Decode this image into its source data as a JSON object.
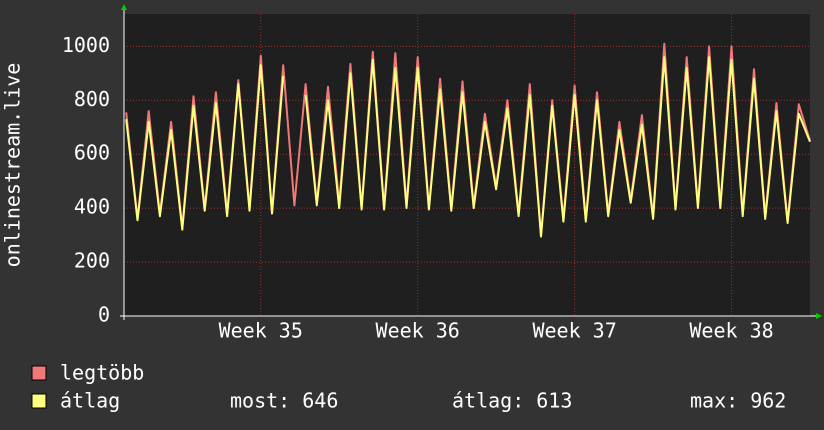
{
  "chart_data": {
    "type": "line",
    "y_label": "onlinestream.live",
    "x": [
      0.1,
      0.6,
      1.1,
      1.6,
      2.1,
      2.6,
      3.1,
      3.6,
      4.1,
      4.6,
      5.1,
      5.6,
      6.1,
      6.6,
      7.1,
      7.6,
      8.1,
      8.6,
      9.1,
      9.6,
      10.1,
      10.6,
      11.1,
      11.6,
      12.1,
      12.6,
      13.1,
      13.6,
      14.1,
      14.6,
      15.1,
      15.6,
      16.1,
      16.6,
      17.1,
      17.6,
      18.1,
      18.6,
      19.1,
      19.6,
      20.1,
      20.6,
      21.1,
      21.6,
      22.1,
      22.6,
      23.1,
      23.6,
      24.1,
      24.6,
      25.1,
      25.6,
      26.1,
      26.6,
      27.1,
      27.6,
      28.1,
      28.6,
      29.1,
      29.6,
      30.1,
      30.6
    ],
    "series": [
      {
        "name": "legtöbb",
        "color": "#f07878",
        "values": [
          755,
          360,
          760,
          380,
          720,
          330,
          815,
          400,
          830,
          380,
          875,
          400,
          965,
          380,
          930,
          410,
          860,
          420,
          850,
          420,
          935,
          400,
          980,
          400,
          975,
          410,
          960,
          400,
          880,
          400,
          870,
          410,
          750,
          480,
          800,
          380,
          860,
          300,
          800,
          360,
          855,
          360,
          830,
          380,
          720,
          430,
          745,
          370,
          1010,
          400,
          960,
          410,
          1000,
          410,
          1000,
          380,
          915,
          370,
          790,
          350,
          785,
          650
        ]
      },
      {
        "name": "átlag",
        "color": "#ffff80",
        "values": [
          730,
          355,
          720,
          370,
          690,
          320,
          780,
          390,
          790,
          370,
          860,
          390,
          930,
          380,
          890,
          null,
          820,
          410,
          800,
          400,
          900,
          395,
          950,
          395,
          920,
          400,
          920,
          395,
          840,
          390,
          830,
          400,
          720,
          470,
          770,
          370,
          820,
          295,
          780,
          350,
          820,
          350,
          800,
          370,
          690,
          420,
          710,
          360,
          960,
          395,
          920,
          400,
          960,
          400,
          950,
          370,
          880,
          360,
          760,
          345,
          750,
          646
        ]
      }
    ],
    "legend_stats": [
      "most: 646",
      "átlag: 613",
      "max: 962"
    ],
    "xlim": [
      0,
      30.6
    ],
    "xticks": [
      {
        "value": 6.1,
        "label": "Week 35"
      },
      {
        "value": 13.1,
        "label": "Week 36"
      },
      {
        "value": 20.1,
        "label": "Week 37"
      },
      {
        "value": 27.1,
        "label": "Week 38"
      }
    ],
    "ylim": [
      0,
      1120
    ],
    "yticks": [
      0,
      200,
      400,
      600,
      800,
      1000
    ],
    "grid": true
  }
}
